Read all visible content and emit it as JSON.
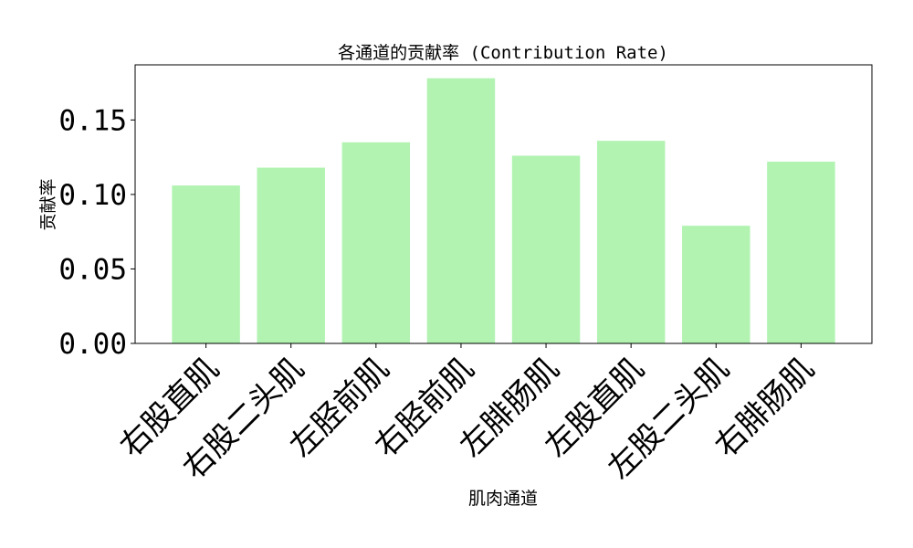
{
  "chart_data": {
    "type": "bar",
    "title": "各通道的贡献率 (Contribution Rate)",
    "xlabel": "肌肉通道",
    "ylabel": "贡献率",
    "categories": [
      "右股直肌",
      "右股二头肌",
      "左胫前肌",
      "右胫前肌",
      "左腓肠肌",
      "左股直肌",
      "左股二头肌",
      "右腓肠肌"
    ],
    "values": [
      0.106,
      0.118,
      0.135,
      0.178,
      0.126,
      0.136,
      0.079,
      0.122
    ],
    "ylim": [
      0,
      0.187
    ],
    "yticks": [
      0.0,
      0.05,
      0.1,
      0.15
    ],
    "ytick_labels": [
      "0.00",
      "0.05",
      "0.10",
      "0.15"
    ],
    "bar_color": "#b2f3b2",
    "grid": false
  }
}
